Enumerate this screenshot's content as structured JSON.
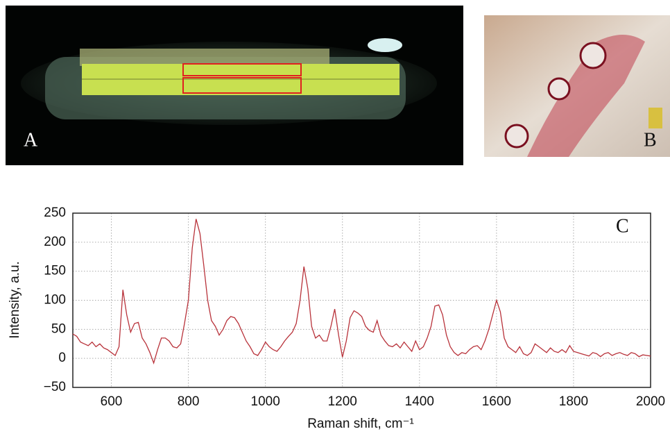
{
  "panels": [
    {
      "label": "A"
    },
    {
      "label": "B"
    }
  ],
  "chart_data": {
    "type": "line",
    "annotation": "C",
    "xlabel": "Raman shift, cm⁻¹",
    "ylabel": "Intensity, a.u.",
    "x": [
      500,
      510,
      520,
      530,
      540,
      550,
      560,
      570,
      580,
      590,
      600,
      610,
      620,
      630,
      640,
      650,
      660,
      670,
      680,
      690,
      700,
      710,
      720,
      730,
      740,
      750,
      760,
      770,
      780,
      790,
      800,
      810,
      820,
      830,
      840,
      850,
      860,
      870,
      880,
      890,
      900,
      910,
      920,
      930,
      940,
      950,
      960,
      970,
      980,
      990,
      1000,
      1010,
      1020,
      1030,
      1040,
      1050,
      1060,
      1070,
      1080,
      1090,
      1100,
      1110,
      1120,
      1130,
      1140,
      1150,
      1160,
      1170,
      1180,
      1190,
      1200,
      1210,
      1220,
      1230,
      1240,
      1250,
      1260,
      1270,
      1280,
      1290,
      1300,
      1310,
      1320,
      1330,
      1340,
      1350,
      1360,
      1370,
      1380,
      1390,
      1400,
      1410,
      1420,
      1430,
      1440,
      1450,
      1460,
      1470,
      1480,
      1490,
      1500,
      1510,
      1520,
      1530,
      1540,
      1550,
      1560,
      1570,
      1580,
      1590,
      1600,
      1610,
      1620,
      1630,
      1640,
      1650,
      1660,
      1670,
      1680,
      1690,
      1700,
      1710,
      1720,
      1730,
      1740,
      1750,
      1760,
      1770,
      1780,
      1790,
      1800,
      1810,
      1820,
      1830,
      1840,
      1850,
      1860,
      1870,
      1880,
      1890,
      1900,
      1910,
      1920,
      1930,
      1940,
      1950,
      1960,
      1970,
      1980,
      1990,
      2000
    ],
    "series": [
      {
        "color": "#b8323a",
        "values": [
          42,
          38,
          28,
          25,
          22,
          28,
          20,
          25,
          18,
          15,
          10,
          5,
          20,
          118,
          75,
          45,
          60,
          62,
          35,
          25,
          10,
          -8,
          15,
          35,
          35,
          30,
          20,
          18,
          25,
          60,
          100,
          190,
          240,
          215,
          160,
          100,
          65,
          55,
          40,
          50,
          65,
          72,
          70,
          60,
          45,
          30,
          20,
          8,
          5,
          15,
          28,
          20,
          15,
          12,
          20,
          30,
          38,
          45,
          60,
          100,
          158,
          120,
          55,
          35,
          40,
          30,
          30,
          55,
          85,
          40,
          2,
          30,
          70,
          82,
          78,
          72,
          55,
          48,
          45,
          65,
          40,
          30,
          22,
          20,
          25,
          18,
          28,
          20,
          12,
          30,
          15,
          20,
          35,
          55,
          90,
          92,
          75,
          40,
          20,
          10,
          5,
          10,
          8,
          15,
          20,
          22,
          15,
          30,
          50,
          75,
          100,
          80,
          35,
          20,
          15,
          10,
          20,
          8,
          5,
          10,
          25,
          20,
          15,
          10,
          18,
          12,
          10,
          15,
          10,
          22,
          12,
          10,
          8,
          6,
          4,
          10,
          8,
          3,
          8,
          10,
          5,
          8,
          10,
          7,
          5,
          10,
          8,
          3,
          6,
          5,
          4
        ]
      }
    ],
    "xlim": [
      500,
      2000
    ],
    "ylim": [
      -50,
      250
    ],
    "xticks": [
      600,
      800,
      1000,
      1200,
      1400,
      1600,
      1800,
      2000
    ],
    "yticks": [
      {
        "value": -50,
        "label": "−50"
      },
      0,
      50,
      100,
      150,
      200,
      250
    ],
    "grid": true
  }
}
